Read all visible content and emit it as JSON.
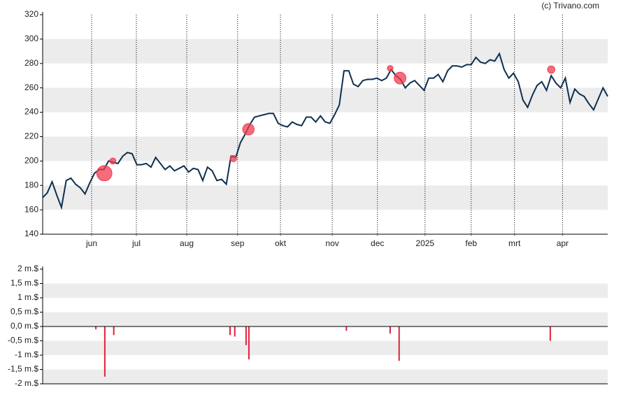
{
  "chart_data": [
    {
      "type": "line",
      "credit": "(c) Trivano.com",
      "color": "#0d3050",
      "xlim": [
        0,
        120
      ],
      "xticks": [
        {
          "value": 10.4,
          "label": "jun"
        },
        {
          "value": 19.9,
          "label": "jul"
        },
        {
          "value": 30.6,
          "label": "aug"
        },
        {
          "value": 41.4,
          "label": "sep"
        },
        {
          "value": 50.5,
          "label": "okt"
        },
        {
          "value": 61.5,
          "label": "nov"
        },
        {
          "value": 71.1,
          "label": "dec"
        },
        {
          "value": 81.2,
          "label": "2025"
        },
        {
          "value": 91.0,
          "label": "feb"
        },
        {
          "value": 100.2,
          "label": "mrt"
        },
        {
          "value": 110.4,
          "label": "apr"
        }
      ],
      "ylim": [
        140,
        320
      ],
      "yticks": [
        140,
        160,
        180,
        200,
        220,
        240,
        260,
        280,
        300,
        320
      ],
      "values": [
        170,
        174,
        183,
        172,
        162,
        184,
        186,
        181,
        178,
        173,
        182,
        190,
        193,
        193,
        200,
        199,
        198,
        204,
        207,
        206,
        197,
        197,
        198,
        195,
        203,
        198,
        193,
        196,
        192,
        194,
        196,
        191,
        194,
        193,
        184,
        195,
        192,
        184,
        185,
        181,
        204,
        203,
        215,
        222,
        230,
        236,
        237,
        238,
        239,
        239,
        231,
        229,
        228,
        232,
        230,
        229,
        236,
        236,
        232,
        237,
        232,
        231,
        238,
        246,
        274,
        274,
        263,
        261,
        266,
        267,
        267,
        268,
        266,
        268,
        275,
        270,
        267,
        260,
        264,
        266,
        262,
        258,
        268,
        268,
        271,
        265,
        274,
        278,
        278,
        277,
        279,
        279,
        285,
        281,
        280,
        283,
        282,
        288,
        275,
        268,
        272,
        265,
        250,
        244,
        254,
        262,
        265,
        258,
        270,
        264,
        260,
        268,
        248,
        259,
        255,
        253,
        247,
        242,
        251,
        260,
        253
      ],
      "markers": {
        "color": "#f03c50",
        "x": [
          13.1,
          14.9,
          40.5,
          43.7,
          73.8,
          75.9,
          108.0
        ],
        "y": [
          190,
          200,
          202,
          226,
          276,
          268,
          275
        ],
        "size": [
          -1.75,
          -0.3,
          -0.35,
          -1.15,
          -0.25,
          -1.2,
          -0.5
        ]
      }
    },
    {
      "type": "bar",
      "color": "#e0203a",
      "xlim": [
        0,
        120
      ],
      "ylim": [
        -2,
        2
      ],
      "yticks": [
        {
          "value": -2,
          "label": "-2 m.$"
        },
        {
          "value": -1.5,
          "label": "-1,5 m.$"
        },
        {
          "value": -1,
          "label": "-1 m.$"
        },
        {
          "value": -0.5,
          "label": "-0,5 m.$"
        },
        {
          "value": 0,
          "label": "0,0 m.$"
        },
        {
          "value": 0.5,
          "label": "0,5 m.$"
        },
        {
          "value": 1,
          "label": "1 m.$"
        },
        {
          "value": 1.5,
          "label": "1,5 m.$"
        },
        {
          "value": 2,
          "label": "2 m.$"
        }
      ],
      "x": [
        11.3,
        13.2,
        15.1,
        39.8,
        40.8,
        43.2,
        43.8,
        64.5,
        73.8,
        75.7,
        107.8
      ],
      "values": [
        -0.1,
        -1.75,
        -0.3,
        -0.3,
        -0.35,
        -0.65,
        -1.15,
        -0.15,
        -0.25,
        -1.2,
        -0.5
      ]
    }
  ]
}
